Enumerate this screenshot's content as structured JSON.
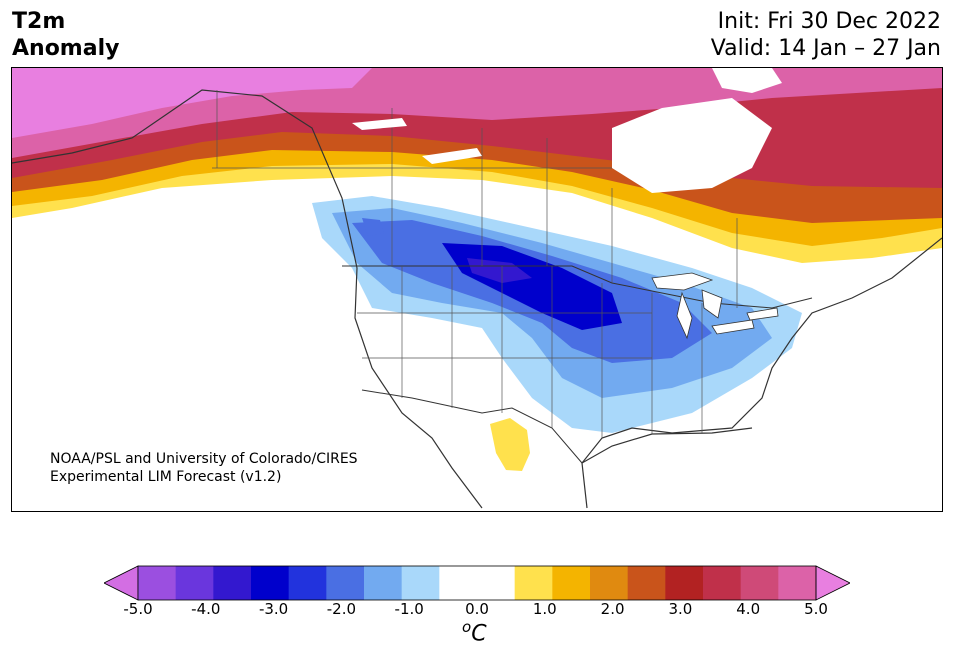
{
  "header": {
    "variable": "T2m",
    "subtitle": "Anomaly",
    "init": "Init: Fri 30 Dec 2022",
    "valid": "Valid: 14 Jan – 27 Jan"
  },
  "map": {
    "credit_line1": "NOAA/PSL and University of Colorado/CIRES",
    "credit_line2": "Experimental LIM Forecast (v1.2)"
  },
  "colorbar": {
    "unit_base": "C",
    "unit_super": "o",
    "ticks": [
      "-5.0",
      "-4.0",
      "-3.0",
      "-2.0",
      "-1.0",
      "0.0",
      "1.0",
      "2.0",
      "3.0",
      "4.0",
      "5.0"
    ],
    "colors": [
      "#d36ee3",
      "#9b4fe0",
      "#6a36dd",
      "#3318cf",
      "#0000cc",
      "#2233dd",
      "#4a6fe3",
      "#72aaf0",
      "#a9d8fa",
      "#ffffff",
      "#ffffff",
      "#ffe14d",
      "#f4b400",
      "#e08a10",
      "#c9541b",
      "#b22222",
      "#c0304a",
      "#cf4a78",
      "#dc62a8",
      "#e87fe0"
    ]
  }
}
